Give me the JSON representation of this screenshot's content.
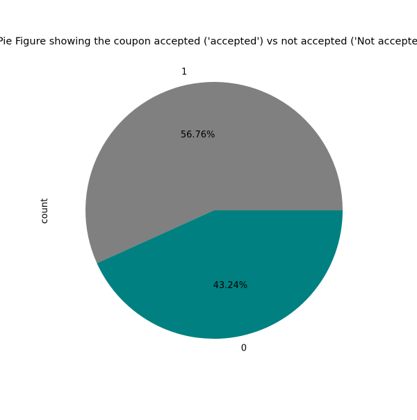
{
  "chart_data": {
    "type": "pie",
    "title": "Pie Figure showing the coupon accepted ('accepted') vs not accepted ('Not accepted')",
    "ylabel": "count",
    "xlabel": "",
    "start_angle_deg": 0,
    "direction": "counterclockwise",
    "slices": [
      {
        "label": "1",
        "percent": 56.76,
        "percent_label": "56.76%",
        "color": "#808080"
      },
      {
        "label": "0",
        "percent": 43.24,
        "percent_label": "43.24%",
        "color": "#008080"
      }
    ]
  }
}
